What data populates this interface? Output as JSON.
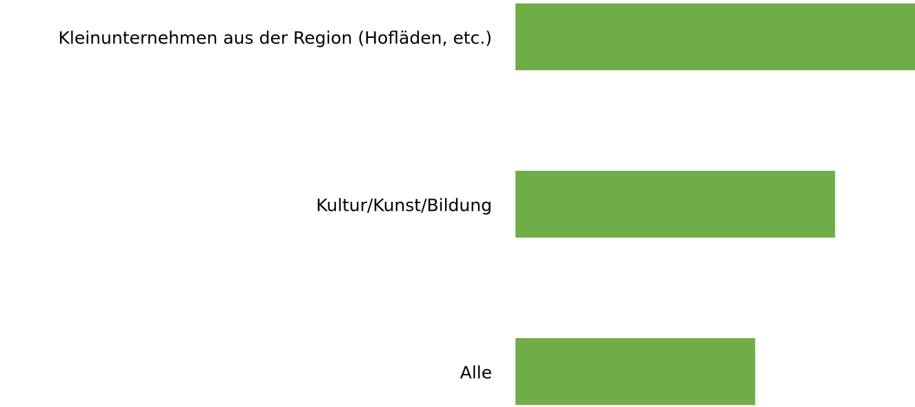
{
  "chart_data": {
    "type": "hbar",
    "categories": [
      "Kleinunternehmen aus der Region (Hofläden, etc.)",
      "Kultur/Kunst/Bildung",
      "Alle"
    ],
    "values": [
      100,
      80,
      60
    ],
    "color": "#70ad47",
    "xlim": [
      0,
      100
    ]
  }
}
